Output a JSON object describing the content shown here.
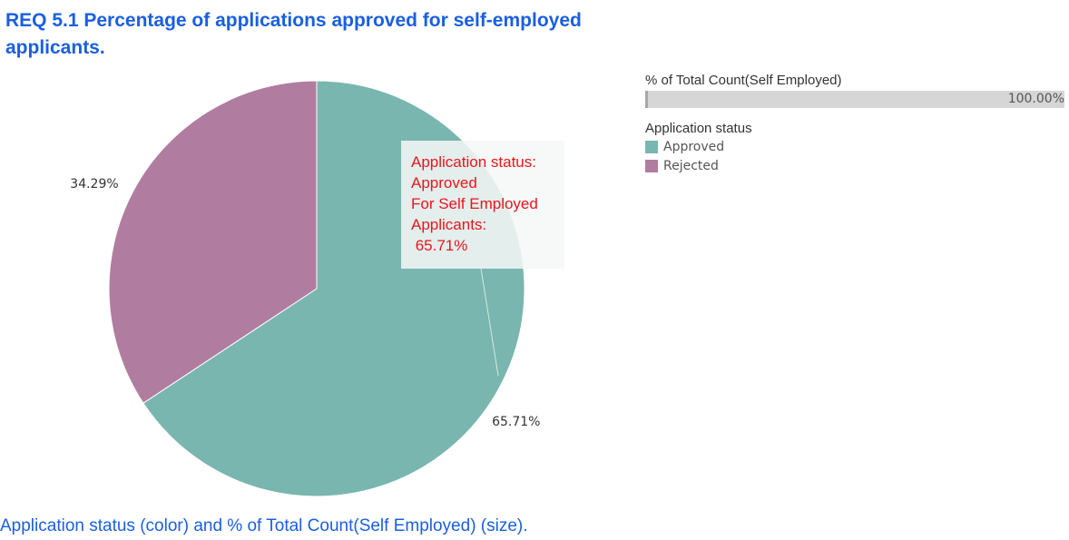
{
  "chart_data": {
    "type": "pie",
    "title": "REQ 5.1 Percentage of applications approved for self-employed applicants.",
    "slices": [
      {
        "category": "Approved",
        "value": 65.71,
        "label": "65.71%",
        "color": "#79b6b0"
      },
      {
        "category": "Rejected",
        "value": 34.29,
        "label": "34.29%",
        "color": "#b07da1"
      }
    ],
    "annotation": {
      "lines": [
        "Application status:",
        "Approved",
        "For Self Employed",
        "Applicants:",
        " 65.71%"
      ],
      "color": "#e8161a"
    },
    "legend": {
      "size_title": "% of Total Count(Self Employed)",
      "size_value": "100.00%",
      "color_title": "Application status",
      "items": [
        {
          "label": "Approved",
          "color": "#79b6b0"
        },
        {
          "label": "Rejected",
          "color": "#b07da1"
        }
      ]
    },
    "caption": "Application status (color) and % of Total Count(Self Employed) (size)."
  }
}
